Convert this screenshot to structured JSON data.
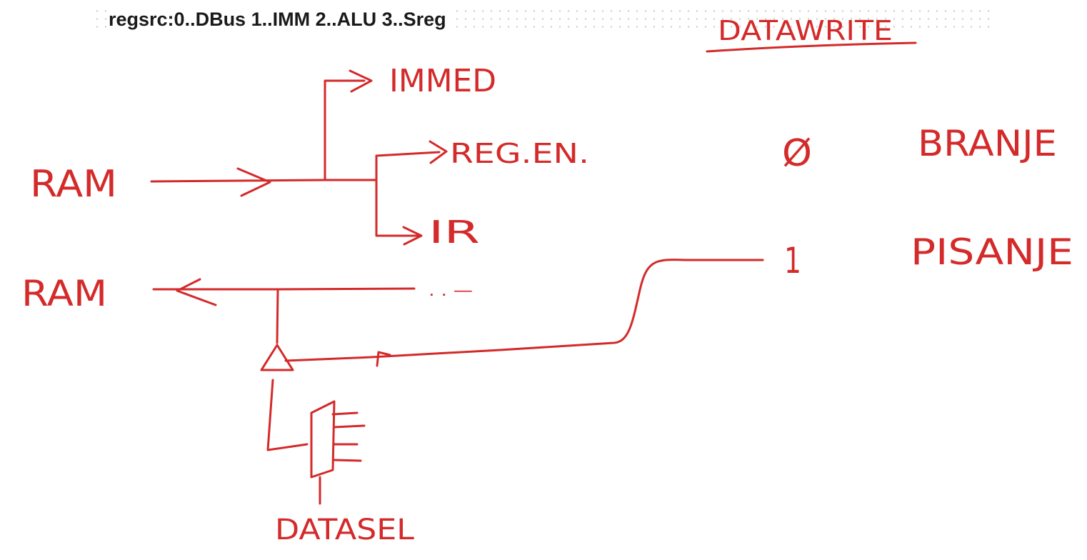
{
  "header": {
    "text": "regsrc:0..DBus 1..IMM 2..ALU 3..Sreg"
  },
  "handwriting": {
    "datawrite_title": "DATAWRITE",
    "ram_in": "RAM",
    "ram_out": "RAM",
    "immed": "IMMED",
    "reg_en": "REG.EN.",
    "ir": "IR",
    "dots": ". . —",
    "datasel": "DATASEL",
    "value_zero": "Ø",
    "value_one": "1",
    "branje": "BRANJE",
    "pisanje": "PISANJE"
  },
  "colors": {
    "ink": "#d42a2a",
    "header_text": "#1a1a1a",
    "background": "#ffffff"
  }
}
